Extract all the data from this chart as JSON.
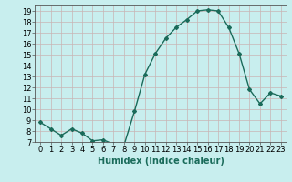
{
  "x": [
    0,
    1,
    2,
    3,
    4,
    5,
    6,
    7,
    8,
    9,
    10,
    11,
    12,
    13,
    14,
    15,
    16,
    17,
    18,
    19,
    20,
    21,
    22,
    23
  ],
  "y": [
    8.8,
    8.2,
    7.6,
    8.2,
    7.8,
    7.1,
    7.2,
    6.8,
    6.7,
    9.8,
    13.2,
    15.1,
    16.5,
    17.5,
    18.2,
    19.0,
    19.1,
    19.0,
    17.5,
    15.1,
    11.8,
    10.5,
    11.5,
    11.2
  ],
  "line_color": "#1a6b5a",
  "marker": "D",
  "marker_size": 2.0,
  "bg_color": "#c8eeee",
  "grid_color": "#b0c8c8",
  "xlabel": "Humidex (Indice chaleur)",
  "xlim": [
    -0.5,
    23.5
  ],
  "ylim": [
    7,
    19.5
  ],
  "yticks": [
    7,
    8,
    9,
    10,
    11,
    12,
    13,
    14,
    15,
    16,
    17,
    18,
    19
  ],
  "xticks": [
    0,
    1,
    2,
    3,
    4,
    5,
    6,
    7,
    8,
    9,
    10,
    11,
    12,
    13,
    14,
    15,
    16,
    17,
    18,
    19,
    20,
    21,
    22,
    23
  ],
  "tick_labelsize": 6,
  "xlabel_fontsize": 7,
  "line_width": 1.0
}
